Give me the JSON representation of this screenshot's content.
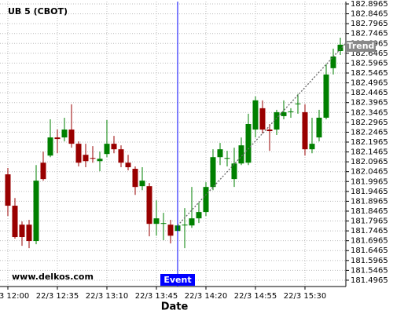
{
  "chart_data": {
    "type": "candlestick",
    "title": "UB 5 (CBOT)",
    "watermark": "www.delkos.com",
    "x_label": "Date",
    "x": [
      "22/3 12:00",
      "22/3 12:05",
      "22/3 12:10",
      "22/3 12:15",
      "22/3 12:20",
      "22/3 12:25",
      "22/3 12:30",
      "22/3 12:35",
      "22/3 12:40",
      "22/3 12:45",
      "22/3 12:50",
      "22/3 12:55",
      "22/3 13:00",
      "22/3 13:05",
      "22/3 13:10",
      "22/3 13:15",
      "22/3 13:20",
      "22/3 13:25",
      "22/3 13:30",
      "22/3 13:35",
      "22/3 13:40",
      "22/3 13:45",
      "22/3 13:50",
      "22/3 13:55",
      "22/3 14:00",
      "22/3 14:05",
      "22/3 14:10",
      "22/3 14:15",
      "22/3 14:20",
      "22/3 14:25",
      "22/3 14:30",
      "22/3 14:35",
      "22/3 14:40",
      "22/3 14:45",
      "22/3 14:50",
      "22/3 14:55",
      "22/3 15:00",
      "22/3 15:05",
      "22/3 15:10",
      "22/3 15:15",
      "22/3 15:20",
      "22/3 15:25",
      "22/3 15:30",
      "22/3 15:35",
      "22/3 15:40",
      "22/3 15:45",
      "22/3 15:50",
      "22/3 15:55"
    ],
    "open": [
      182.033,
      181.874,
      181.778,
      181.778,
      181.695,
      182.092,
      182.128,
      182.22,
      182.22,
      182.26,
      182.188,
      182.132,
      182.116,
      182.1,
      182.136,
      182.188,
      182.16,
      182.092,
      182.061,
      181.973,
      181.973,
      181.782,
      181.782,
      181.778,
      181.746,
      181.774,
      181.774,
      181.81,
      181.842,
      181.969,
      182.12,
      182.112,
      182.009,
      182.088,
      182.092,
      182.26,
      182.368,
      182.26,
      182.26,
      182.328,
      182.348,
      182.388,
      182.348,
      182.16,
      182.22,
      182.32,
      182.571,
      182.658
    ],
    "high": [
      182.065,
      181.913,
      181.794,
      181.802,
      182.08,
      182.148,
      182.312,
      182.26,
      182.32,
      182.388,
      182.2,
      182.188,
      182.176,
      182.148,
      182.308,
      182.228,
      182.18,
      182.132,
      182.073,
      182.069,
      181.989,
      181.901,
      181.838,
      181.802,
      181.802,
      181.862,
      181.969,
      181.89,
      181.993,
      182.16,
      182.192,
      182.152,
      182.168,
      182.22,
      182.34,
      182.428,
      182.408,
      182.288,
      182.36,
      182.408,
      182.368,
      182.44,
      182.388,
      182.32,
      182.36,
      182.591,
      182.67,
      182.7255
    ],
    "low": [
      181.822,
      181.707,
      181.671,
      181.659,
      181.679,
      182.001,
      182.12,
      182.14,
      182.2,
      182.168,
      182.073,
      182.069,
      182.092,
      182.049,
      182.12,
      182.14,
      182.069,
      182.053,
      181.929,
      181.953,
      181.719,
      181.722,
      181.699,
      181.683,
      181.746,
      181.659,
      181.762,
      181.786,
      181.822,
      181.953,
      182.08,
      182.073,
      181.969,
      182.08,
      182.08,
      182.22,
      182.24,
      182.152,
      182.232,
      182.312,
      182.32,
      182.34,
      182.128,
      182.14,
      182.2,
      182.312,
      182.539,
      182.638
    ],
    "close": [
      181.874,
      181.715,
      181.715,
      181.695,
      182.001,
      182.009,
      182.22,
      182.212,
      182.26,
      182.188,
      182.092,
      182.1,
      182.112,
      182.112,
      182.188,
      182.16,
      182.092,
      182.069,
      181.969,
      182.001,
      181.782,
      181.81,
      181.786,
      181.722,
      181.774,
      181.778,
      181.81,
      181.842,
      181.969,
      182.12,
      182.16,
      182.116,
      182.088,
      182.18,
      182.288,
      182.408,
      182.26,
      182.252,
      182.348,
      182.348,
      182.352,
      182.392,
      182.16,
      182.188,
      182.32,
      182.539,
      182.63,
      182.69
    ],
    "up_color": "#008000",
    "down_color": "#990000",
    "ylim": [
      181.4645,
      182.9085
    ],
    "yticks": [
      182.8965,
      182.8465,
      182.7965,
      182.7465,
      182.6965,
      182.6465,
      182.5965,
      182.5465,
      182.4965,
      182.4465,
      182.3965,
      182.3465,
      182.2965,
      182.2465,
      182.1965,
      182.1465,
      182.0965,
      182.0465,
      181.9965,
      181.9465,
      181.8965,
      181.8465,
      181.7965,
      181.7465,
      181.6965,
      181.6465,
      181.5965,
      181.5465,
      181.4965
    ],
    "xticks": [
      "22/3 12:00",
      "22/3 12:35",
      "22/3 13:10",
      "22/3 13:45",
      "22/3 14:20",
      "22/3 14:55",
      "22/3 15:30"
    ],
    "grid": true,
    "event": {
      "x": "22/3 14:00",
      "label": "Event",
      "color": "#0000ff"
    },
    "trend": {
      "label": "Trend",
      "start": {
        "x": "22/3 14:00",
        "y": 181.774
      },
      "end": {
        "x": "22/3 15:55",
        "y": 182.67
      }
    }
  }
}
